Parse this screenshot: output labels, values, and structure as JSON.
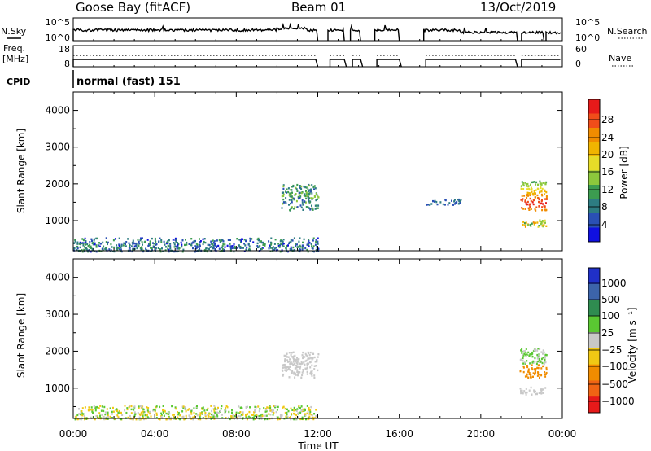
{
  "header": {
    "site": "Goose Bay (fitACF)",
    "beam": "Beam 01",
    "date": "13/Oct/2019"
  },
  "panels": {
    "nsky": {
      "label": "N.Sky",
      "right_label": "N.Search",
      "left_ticks": [
        "10^5",
        "10^0"
      ],
      "right_ticks": [
        "10^5",
        "10^0"
      ]
    },
    "freq": {
      "label_line1": "Freq.",
      "label_line2": "[MHz]",
      "right_label": "Nave",
      "left_ticks": [
        "18",
        "8"
      ],
      "right_ticks": [
        "60",
        "0"
      ]
    },
    "cpid": {
      "label": "CPID",
      "value": "normal (fast) 151"
    }
  },
  "power": {
    "ylabel": "Slant Range [km]",
    "cbar_label": "Power [dB]",
    "cbar_ticks": [
      "28",
      "24",
      "20",
      "16",
      "12",
      "8",
      "4"
    ],
    "cbar_colors": [
      "#e61a1a",
      "#f04d1a",
      "#f08c00",
      "#f0b400",
      "#e6dc28",
      "#8cc83c",
      "#3c9c50",
      "#2d7c82",
      "#2a50b4",
      "#1010e0"
    ]
  },
  "velocity": {
    "ylabel": "Slant Range [km]",
    "cbar_label": "Velocity [m s⁻¹]",
    "cbar_ticks": [
      "1000",
      "500",
      "100",
      "25",
      "−25",
      "−100",
      "−500",
      "−1000"
    ],
    "cbar_colors": [
      "#2030c8",
      "#3c64aa",
      "#2f8c50",
      "#5ac832",
      "#c8c8c8",
      "#f0c814",
      "#f08c00",
      "#f06414",
      "#e61a1a"
    ]
  },
  "x_axis": {
    "label": "Time UT",
    "ticks": [
      "00:00",
      "04:00",
      "08:00",
      "12:00",
      "16:00",
      "20:00",
      "00:00"
    ]
  },
  "chart_data": [
    {
      "type": "heatmap",
      "name": "Power",
      "x_range_hours": [
        0,
        24
      ],
      "ylim": [
        180,
        4500
      ],
      "y_ticks": [
        1000,
        2000,
        3000,
        4000
      ],
      "colorbar_ticks": [
        4,
        8,
        12,
        16,
        20,
        24,
        28
      ],
      "regions": [
        {
          "t": [
            0.0,
            12.0
          ],
          "range_km": [
            180,
            550
          ],
          "level_db": [
            2,
            12
          ]
        },
        {
          "t": [
            10.2,
            12.0
          ],
          "range_km": [
            1300,
            2000
          ],
          "level_db": [
            4,
            14
          ]
        },
        {
          "t": [
            21.9,
            23.2
          ],
          "range_km": [
            1300,
            2100
          ],
          "level_db": [
            8,
            28
          ]
        },
        {
          "t": [
            21.9,
            23.2
          ],
          "range_km": [
            850,
            1050
          ],
          "level_db": [
            10,
            24
          ]
        },
        {
          "t": [
            17.3,
            19.0
          ],
          "range_km": [
            1450,
            1600
          ],
          "level_db": [
            4,
            8
          ]
        }
      ]
    },
    {
      "type": "heatmap",
      "name": "Velocity",
      "x_range_hours": [
        0,
        24
      ],
      "ylim": [
        180,
        4500
      ],
      "y_ticks": [
        1000,
        2000,
        3000,
        4000
      ],
      "colorbar_ticks": [
        1000,
        500,
        100,
        25,
        -25,
        -100,
        -500,
        -1000
      ],
      "regions": [
        {
          "t": [
            0.0,
            12.0
          ],
          "range_km": [
            180,
            550
          ],
          "velocity_ms": [
            -100,
            100
          ]
        },
        {
          "t": [
            10.2,
            12.0
          ],
          "range_km": [
            1300,
            2000
          ],
          "velocity_ms": [
            -25,
            25
          ]
        },
        {
          "t": [
            21.9,
            23.2
          ],
          "range_km": [
            1300,
            2100
          ],
          "velocity_ms": [
            -500,
            100
          ]
        },
        {
          "t": [
            21.9,
            23.2
          ],
          "range_km": [
            850,
            1050
          ],
          "velocity_ms": [
            -25,
            25
          ]
        }
      ]
    }
  ]
}
